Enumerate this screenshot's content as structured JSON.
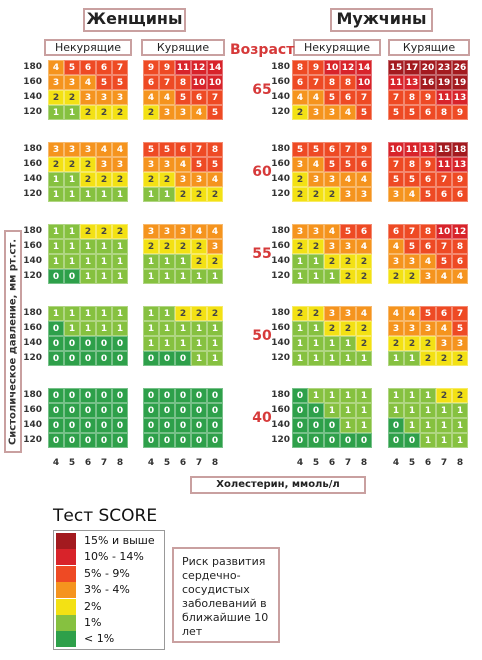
{
  "headers": {
    "women": "Женщины",
    "men": "Мужчины",
    "non_smoking": "Некурящие",
    "smoking": "Курящие",
    "age": "Возраст"
  },
  "axis": {
    "y_label": "Систолическое давление, мм рт.ст.",
    "x_label": "Холестерин, ммоль/л",
    "bp_ticks": [
      "180",
      "160",
      "140",
      "120"
    ],
    "chol_ticks": [
      "4",
      "5",
      "6",
      "7",
      "8"
    ]
  },
  "ages": [
    "65",
    "60",
    "55",
    "50",
    "40"
  ],
  "tables": {
    "women_nonsmoking": [
      [
        [
          4,
          5,
          6,
          6,
          7
        ],
        [
          3,
          3,
          4,
          5,
          5
        ],
        [
          2,
          2,
          3,
          3,
          3
        ],
        [
          1,
          1,
          2,
          2,
          2
        ]
      ],
      [
        [
          3,
          3,
          3,
          4,
          4
        ],
        [
          2,
          2,
          2,
          3,
          3
        ],
        [
          1,
          1,
          2,
          2,
          2
        ],
        [
          1,
          1,
          1,
          1,
          1
        ]
      ],
      [
        [
          1,
          1,
          2,
          2,
          2
        ],
        [
          1,
          1,
          1,
          1,
          1
        ],
        [
          1,
          1,
          1,
          1,
          1
        ],
        [
          0,
          0,
          1,
          1,
          1
        ]
      ],
      [
        [
          1,
          1,
          1,
          1,
          1
        ],
        [
          0,
          1,
          1,
          1,
          1
        ],
        [
          0,
          0,
          0,
          0,
          0
        ],
        [
          0,
          0,
          0,
          0,
          0
        ]
      ],
      [
        [
          0,
          0,
          0,
          0,
          0
        ],
        [
          0,
          0,
          0,
          0,
          0
        ],
        [
          0,
          0,
          0,
          0,
          0
        ],
        [
          0,
          0,
          0,
          0,
          0
        ]
      ]
    ],
    "women_smoking": [
      [
        [
          9,
          9,
          11,
          12,
          14
        ],
        [
          6,
          7,
          8,
          10,
          10
        ],
        [
          4,
          4,
          5,
          6,
          7
        ],
        [
          2,
          3,
          3,
          4,
          5
        ]
      ],
      [
        [
          5,
          5,
          6,
          7,
          8
        ],
        [
          3,
          3,
          4,
          5,
          5
        ],
        [
          2,
          2,
          3,
          3,
          4
        ],
        [
          1,
          1,
          2,
          2,
          2
        ]
      ],
      [
        [
          3,
          3,
          3,
          4,
          4
        ],
        [
          2,
          2,
          2,
          2,
          3
        ],
        [
          1,
          1,
          1,
          2,
          2
        ],
        [
          1,
          1,
          1,
          1,
          1
        ]
      ],
      [
        [
          1,
          1,
          2,
          2,
          2
        ],
        [
          1,
          1,
          1,
          1,
          1
        ],
        [
          1,
          1,
          1,
          1,
          1
        ],
        [
          0,
          0,
          0,
          1,
          1
        ]
      ],
      [
        [
          0,
          0,
          0,
          0,
          0
        ],
        [
          0,
          0,
          0,
          0,
          0
        ],
        [
          0,
          0,
          0,
          0,
          0
        ],
        [
          0,
          0,
          0,
          0,
          0
        ]
      ]
    ],
    "men_nonsmoking": [
      [
        [
          8,
          9,
          10,
          12,
          14
        ],
        [
          6,
          7,
          8,
          8,
          10
        ],
        [
          4,
          4,
          5,
          6,
          7
        ],
        [
          2,
          3,
          3,
          4,
          5
        ]
      ],
      [
        [
          5,
          5,
          6,
          7,
          9
        ],
        [
          3,
          4,
          5,
          5,
          6
        ],
        [
          2,
          3,
          3,
          4,
          4
        ],
        [
          2,
          2,
          2,
          3,
          3
        ]
      ],
      [
        [
          3,
          3,
          4,
          5,
          6
        ],
        [
          2,
          2,
          3,
          3,
          4
        ],
        [
          1,
          1,
          2,
          2,
          2
        ],
        [
          1,
          1,
          1,
          2,
          2
        ]
      ],
      [
        [
          2,
          2,
          3,
          3,
          4
        ],
        [
          1,
          1,
          2,
          2,
          2
        ],
        [
          1,
          1,
          1,
          1,
          2
        ],
        [
          1,
          1,
          1,
          1,
          1
        ]
      ],
      [
        [
          0,
          1,
          1,
          1,
          1
        ],
        [
          0,
          0,
          1,
          1,
          1
        ],
        [
          0,
          0,
          0,
          1,
          1
        ],
        [
          0,
          0,
          0,
          0,
          0
        ]
      ]
    ],
    "men_smoking": [
      [
        [
          15,
          17,
          20,
          23,
          26
        ],
        [
          11,
          13,
          16,
          19,
          19
        ],
        [
          7,
          8,
          9,
          11,
          13
        ],
        [
          5,
          5,
          6,
          8,
          9
        ]
      ],
      [
        [
          10,
          11,
          13,
          15,
          18
        ],
        [
          7,
          8,
          9,
          11,
          13
        ],
        [
          5,
          5,
          6,
          7,
          9
        ],
        [
          3,
          4,
          5,
          6,
          6
        ]
      ],
      [
        [
          6,
          7,
          8,
          10,
          12
        ],
        [
          4,
          5,
          6,
          7,
          8
        ],
        [
          3,
          3,
          4,
          5,
          6
        ],
        [
          2,
          2,
          3,
          4,
          4
        ]
      ],
      [
        [
          4,
          4,
          5,
          6,
          7
        ],
        [
          3,
          3,
          3,
          4,
          5
        ],
        [
          2,
          2,
          2,
          3,
          3
        ],
        [
          1,
          1,
          2,
          2,
          2
        ]
      ],
      [
        [
          1,
          1,
          1,
          2,
          2
        ],
        [
          1,
          1,
          1,
          1,
          1
        ],
        [
          0,
          1,
          1,
          1,
          1
        ],
        [
          0,
          0,
          1,
          1,
          1
        ]
      ]
    ]
  },
  "legend": {
    "title": "Тест SCORE",
    "items": [
      {
        "label": "15% и выше",
        "color": "#a31a1f"
      },
      {
        "label": "10% - 14%",
        "color": "#d8232a"
      },
      {
        "label": "5% - 9%",
        "color": "#ee4a24"
      },
      {
        "label": "3% - 4%",
        "color": "#f5941e"
      },
      {
        "label": "2%",
        "color": "#f3e114"
      },
      {
        "label": "1%",
        "color": "#86c140"
      },
      {
        "label": "< 1%",
        "color": "#2ea04a"
      }
    ],
    "risk_text": "Риск развития сердечно-сосудистых заболеваний в ближайшие 10 лет"
  }
}
